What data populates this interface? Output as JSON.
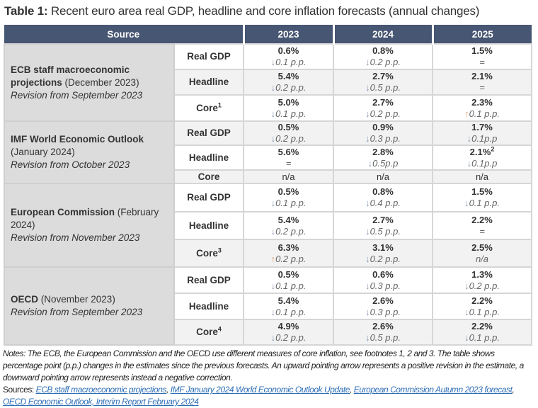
{
  "title": {
    "bold": "Table 1:",
    "text": " Recent euro area real GDP, headline and core inflation forecasts (annual changes)"
  },
  "header": [
    "Source",
    "2023",
    "2024",
    "2025"
  ],
  "colors": {
    "header": "#475672",
    "arrow_down": "#8a9bb5",
    "arrow_up": "#e0a070",
    "link": "#2f6fb5"
  },
  "groups": [
    {
      "name_bold": "ECB staff macroeconomic projections",
      "name_rest": " (December 2023)",
      "revision": "Revision from September 2023",
      "rows": [
        {
          "label": "Real GDP",
          "sup": "",
          "shade": false,
          "cells": [
            [
              "0.6%",
              "",
              "down",
              "0.1 p.p."
            ],
            [
              "0.8%",
              "",
              "down",
              "0.2 p.p."
            ],
            [
              "1.5%",
              "",
              "eq",
              "="
            ]
          ]
        },
        {
          "label": "Headline",
          "sup": "",
          "shade": true,
          "cells": [
            [
              "5.4%",
              "",
              "down",
              "0.2 p.p."
            ],
            [
              "2.7%",
              "",
              "down",
              "0.5 p.p."
            ],
            [
              "2.1%",
              "",
              "eq",
              "="
            ]
          ]
        },
        {
          "label": "Core",
          "sup": "1",
          "shade": false,
          "cells": [
            [
              "5.0%",
              "",
              "down",
              "0.1 p.p."
            ],
            [
              "2.7%",
              "",
              "down",
              "0.2 p.p."
            ],
            [
              "2.3%",
              "",
              "up",
              "0.1 p.p."
            ]
          ]
        }
      ]
    },
    {
      "name_bold": "IMF World Economic Outlook",
      "name_rest": " (January 2024)",
      "revision": "Revision from October  2023",
      "rows": [
        {
          "label": "Real GDP",
          "sup": "",
          "shade": true,
          "cells": [
            [
              "0.5%",
              "",
              "down",
              "0.2 p.p."
            ],
            [
              "0.9%",
              "",
              "down",
              "0.3 p.p."
            ],
            [
              "1.7%",
              "",
              "down",
              "0.1p.p"
            ]
          ]
        },
        {
          "label": "Headline",
          "sup": "",
          "shade": false,
          "cells": [
            [
              "5.6%",
              "",
              "eq",
              "="
            ],
            [
              "2.8%",
              "",
              "down",
              "0.5p.p"
            ],
            [
              "2.1%",
              "2",
              "down",
              "0.1p.p"
            ]
          ]
        },
        {
          "label": "Core",
          "sup": "",
          "shade": true,
          "single": true,
          "cells": [
            [
              "n/a",
              "",
              "",
              ""
            ],
            [
              "n/a",
              "",
              "",
              ""
            ],
            [
              "n/a",
              "",
              "",
              ""
            ]
          ]
        }
      ]
    },
    {
      "name_bold": "European Commission",
      "name_rest": " (February 2024)",
      "revision": "Revision from November 2023",
      "rows": [
        {
          "label": "Real GDP",
          "sup": "",
          "shade": false,
          "cells": [
            [
              "0.5%",
              "",
              "down",
              "0.1 p.p."
            ],
            [
              "0.8%",
              "",
              "down",
              "0.4 p.p."
            ],
            [
              "1.5%",
              "",
              "down",
              "0.1 p.p."
            ]
          ]
        },
        {
          "label": "Headline",
          "sup": "",
          "shade": false,
          "cells": [
            [
              "5.4%",
              "",
              "down",
              "0.2 p.p."
            ],
            [
              "2.7%",
              "",
              "down",
              "0.5 p.p."
            ],
            [
              "2.2%",
              "",
              "eq",
              "="
            ]
          ]
        },
        {
          "label": "Core",
          "sup": "3",
          "shade": true,
          "cells": [
            [
              "6.3%",
              "",
              "up",
              "0.2 p.p."
            ],
            [
              "3.1%",
              "",
              "down",
              "0.2 p.p."
            ],
            [
              "2.5%",
              "",
              "na",
              "n/a"
            ]
          ]
        }
      ]
    },
    {
      "name_bold": "OECD",
      "name_rest": " (November 2023)",
      "revision": "Revision from September 2023",
      "rows": [
        {
          "label": "Real GDP",
          "sup": "",
          "shade": false,
          "cells": [
            [
              "0.5%",
              "",
              "down",
              "0.1 p.p."
            ],
            [
              "0.6%",
              "",
              "down",
              "0.3  p.p."
            ],
            [
              "1.3%",
              "",
              "down",
              "0.2 p.p."
            ]
          ]
        },
        {
          "label": "Headline",
          "sup": "",
          "shade": false,
          "cells": [
            [
              "5.4%",
              "",
              "down",
              "0.1 p.p."
            ],
            [
              "2.6%",
              "",
              "down",
              "0.3 p.p."
            ],
            [
              "2.2%",
              "",
              "down",
              "0.1 p.p."
            ]
          ]
        },
        {
          "label": "Core",
          "sup": "4",
          "shade": true,
          "cells": [
            [
              "4.9%",
              "",
              "down",
              "0.2 p.p."
            ],
            [
              "2.6%",
              "",
              "down",
              "0.5 p.p."
            ],
            [
              "2.2%",
              "",
              "down",
              "0.1 p.p."
            ]
          ]
        }
      ]
    }
  ],
  "notes": {
    "text": "Notes: The ECB, the European Commission and the OECD use different measures of core inflation, see footnotes 1, 2 and 3. The table shows percentage point (p.p.) changes in the estimates since the previous forecasts. An upward pointing arrow represents a positive revision in the estimate, a downward pointing arrow represents instead a negative correction.",
    "sources_label": "Sources: ",
    "links": [
      "ECB staff macroeconomic projections",
      "IMF January  2024  World Economic Outlook Update",
      "European Commission Autumn 2023 forecast",
      "OECD Economic Outlook, Interim Report February 2024"
    ]
  }
}
